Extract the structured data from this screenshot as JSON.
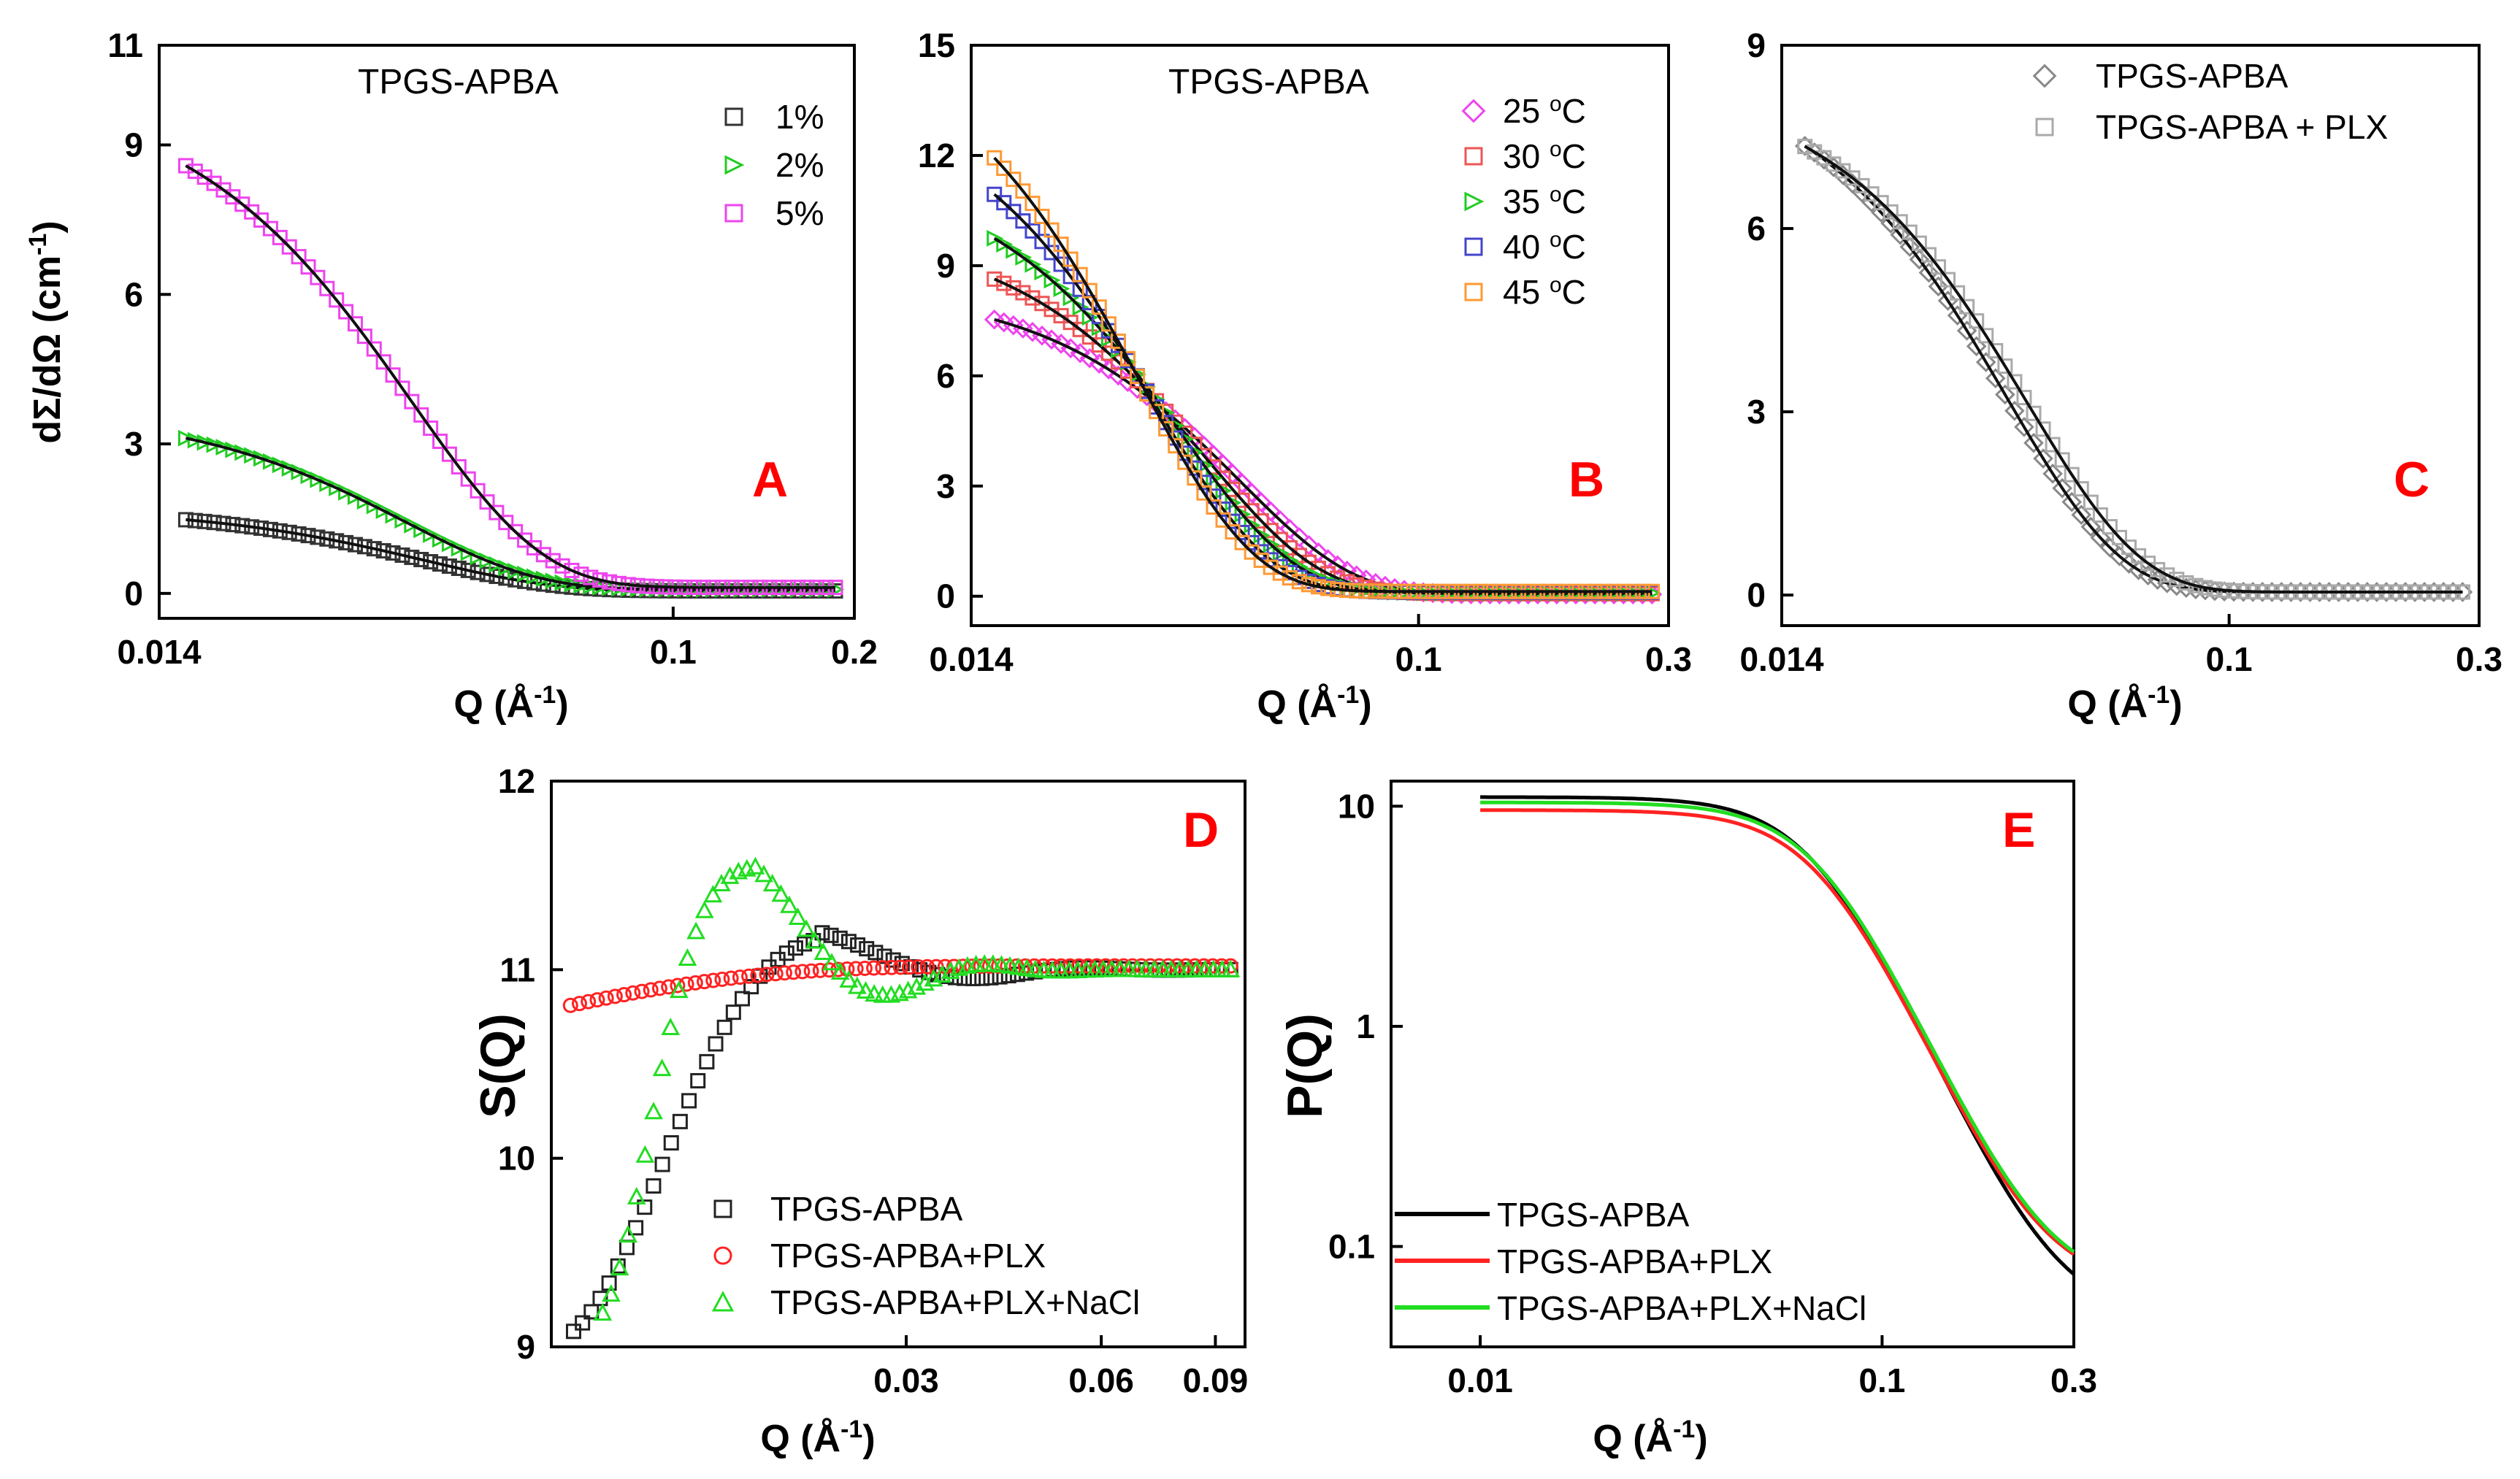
{
  "chart_data": [
    {
      "panel": "A",
      "type": "scatter",
      "title": "TPGS-APBA",
      "xlabel": "Q (Å",
      "xlabel_exp": "-1",
      "xlabel_end": ")",
      "xscale": "log",
      "xlim": [
        0.014,
        0.2
      ],
      "xticks": [
        0.014,
        0.1,
        0.2
      ],
      "xtick_labels": [
        "0.014",
        "0.1",
        "0.2"
      ],
      "ylabel": "dΣ/dΩ (cm",
      "ylabel_exp": "-1",
      "ylabel_end": ")",
      "ylim": [
        -0.5,
        11
      ],
      "yticks": [
        0,
        3,
        6,
        9,
        11
      ],
      "ytick_labels": [
        "0",
        "3",
        "6",
        "9",
        "11"
      ],
      "series": [
        {
          "name": "1%",
          "marker": "square",
          "color": "#333333",
          "I0": 1.68,
          "Rg": 45,
          "bg": 0.05
        },
        {
          "name": "2%",
          "marker": "triangle-right",
          "color": "#22cc22",
          "I0": 3.65,
          "Rg": 48,
          "bg": 0.08
        },
        {
          "name": "5%",
          "marker": "square",
          "color": "#ee44ee",
          "I0": 10.1,
          "Rg": 47,
          "bg": 0.12
        }
      ]
    },
    {
      "panel": "B",
      "type": "scatter",
      "title": "TPGS-APBA",
      "xlabel": "Q (Å",
      "xlabel_exp": "-1",
      "xlabel_end": ")",
      "xscale": "log",
      "xlim": [
        0.014,
        0.3
      ],
      "xticks": [
        0.014,
        0.1,
        0.3
      ],
      "xtick_labels": [
        "0.014",
        "0.1",
        "0.3"
      ],
      "ylim": [
        -0.8,
        15
      ],
      "yticks": [
        0,
        3,
        6,
        9,
        12,
        15
      ],
      "ytick_labels": [
        "0",
        "3",
        "6",
        "9",
        "12",
        "15"
      ],
      "series": [
        {
          "name": "25 ",
          "sup": "o",
          "unit": "C",
          "marker": "diamond",
          "color": "#ee44ee",
          "I0": 8.4,
          "Rg": 38,
          "bg": 0.05
        },
        {
          "name": "30 ",
          "sup": "o",
          "unit": "C",
          "marker": "square",
          "color": "#ee5555",
          "I0": 10.0,
          "Rg": 44,
          "bg": 0.07
        },
        {
          "name": "35 ",
          "sup": "o",
          "unit": "C",
          "marker": "triangle-right",
          "color": "#22cc22",
          "I0": 11.7,
          "Rg": 49,
          "bg": 0.09
        },
        {
          "name": "40 ",
          "sup": "o",
          "unit": "C",
          "marker": "square",
          "color": "#4444cc",
          "I0": 13.8,
          "Rg": 55,
          "bg": 0.11
        },
        {
          "name": "45 ",
          "sup": "o",
          "unit": "C",
          "marker": "square",
          "color": "#ff9933",
          "I0": 15.6,
          "Rg": 59,
          "bg": 0.13
        }
      ]
    },
    {
      "panel": "C",
      "type": "scatter",
      "xlabel": "Q (Å",
      "xlabel_exp": "-1",
      "xlabel_end": ")",
      "xscale": "log",
      "xlim": [
        0.014,
        0.3
      ],
      "xticks": [
        0.014,
        0.1,
        0.3
      ],
      "xtick_labels": [
        "0.014",
        "0.1",
        "0.3"
      ],
      "ylim": [
        -0.5,
        9
      ],
      "yticks": [
        0,
        3,
        6,
        9
      ],
      "ytick_labels": [
        "0",
        "3",
        "6",
        "9"
      ],
      "series": [
        {
          "name": "TPGS-APBA",
          "marker": "diamond",
          "color": "#888888",
          "I0": 8.65,
          "Rg": 46,
          "bg": 0.05
        },
        {
          "name": "TPGS-APBA + PLX",
          "marker": "square",
          "color": "#aaaaaa",
          "I0": 8.4,
          "Rg": 42,
          "bg": 0.05
        }
      ]
    },
    {
      "panel": "D",
      "type": "scatter",
      "xlabel": "Q (Å",
      "xlabel_exp": "-1",
      "xlabel_end": ")",
      "xscale": "log",
      "xlim": [
        0.0085,
        0.1
      ],
      "xticks": [
        0.03,
        0.06,
        0.09
      ],
      "xtick_labels": [
        "0.03",
        "0.06",
        "0.09"
      ],
      "ylabel": "S(Q)",
      "ylim": [
        9,
        12
      ],
      "yticks": [
        9,
        10,
        11,
        12
      ],
      "ytick_labels": [
        "9",
        "10",
        "11",
        "12"
      ],
      "series": [
        {
          "name": "TPGS-APBA",
          "marker": "square",
          "color": "#222222"
        },
        {
          "name": "TPGS-APBA+PLX",
          "marker": "circle",
          "color": "#ff2222"
        },
        {
          "name": "TPGS-APBA+PLX+NaCl",
          "marker": "triangle-up",
          "color": "#22dd22"
        }
      ]
    },
    {
      "panel": "E",
      "type": "line",
      "xlabel": "Q (Å",
      "xlabel_exp": "-1",
      "xlabel_end": ")",
      "xscale": "log",
      "xlim": [
        0.006,
        0.3
      ],
      "xticks": [
        0.01,
        0.1,
        0.3
      ],
      "xtick_labels": [
        "0.01",
        "0.1",
        "0.3"
      ],
      "ylabel": "P(Q)",
      "yscale": "log",
      "ylim": [
        0.035,
        13
      ],
      "yticks": [
        0.1,
        1,
        10
      ],
      "ytick_labels": [
        "0.1",
        "1",
        "10"
      ],
      "series": [
        {
          "name": "TPGS-APBA",
          "color": "#000000",
          "top": 11.0,
          "bot": 0.046,
          "q0": 0.068
        },
        {
          "name": "TPGS-APBA+PLX",
          "color": "#ff2222",
          "top": 9.6,
          "bot": 0.064,
          "q0": 0.07
        },
        {
          "name": "TPGS-APBA+PLX+NaCl",
          "color": "#22dd22",
          "top": 10.4,
          "bot": 0.064,
          "q0": 0.07
        }
      ]
    }
  ]
}
